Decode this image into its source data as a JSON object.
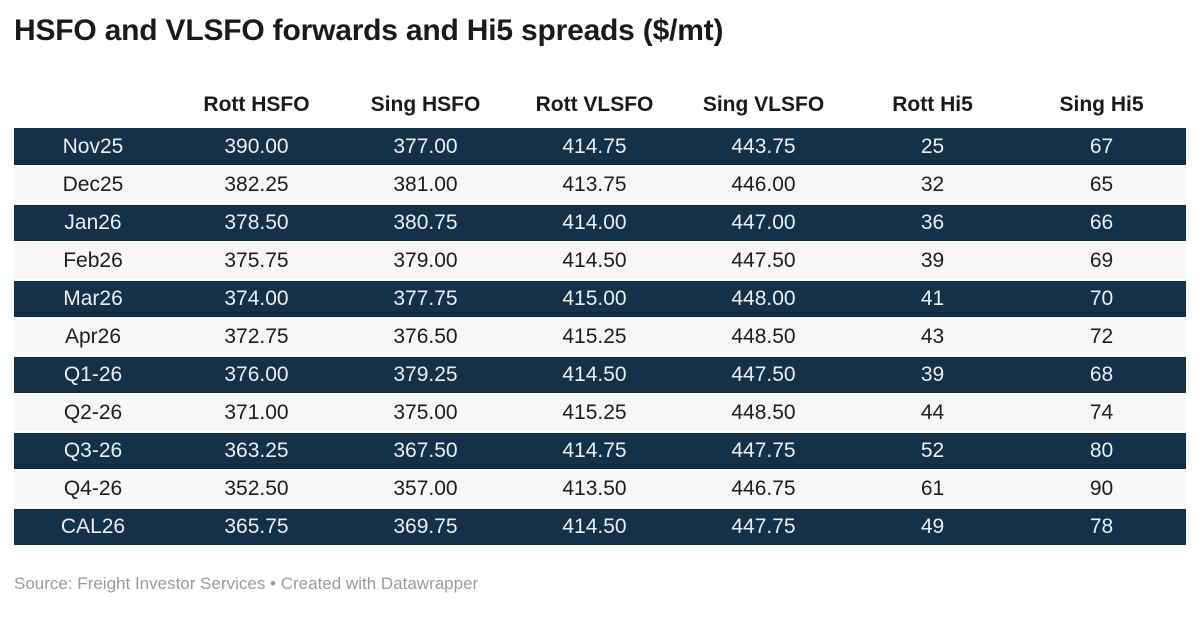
{
  "header": {
    "title": "HSFO and VLSFO forwards and Hi5 spreads ($/mt)"
  },
  "chart_data": {
    "type": "table",
    "title": "HSFO and VLSFO forwards and Hi5 spreads ($/mt)",
    "columns": [
      "",
      "Rott HSFO",
      "Sing HSFO",
      "Rott VLSFO",
      "Sing VLSFO",
      "Rott Hi5",
      "Sing Hi5"
    ],
    "rows": [
      {
        "label": "Nov25",
        "values": [
          "390.00",
          "377.00",
          "414.75",
          "443.75",
          "25",
          "67"
        ]
      },
      {
        "label": "Dec25",
        "values": [
          "382.25",
          "381.00",
          "413.75",
          "446.00",
          "32",
          "65"
        ]
      },
      {
        "label": "Jan26",
        "values": [
          "378.50",
          "380.75",
          "414.00",
          "447.00",
          "36",
          "66"
        ]
      },
      {
        "label": "Feb26",
        "values": [
          "375.75",
          "379.00",
          "414.50",
          "447.50",
          "39",
          "69"
        ]
      },
      {
        "label": "Mar26",
        "values": [
          "374.00",
          "377.75",
          "415.00",
          "448.00",
          "41",
          "70"
        ]
      },
      {
        "label": "Apr26",
        "values": [
          "372.75",
          "376.50",
          "415.25",
          "448.50",
          "43",
          "72"
        ]
      },
      {
        "label": "Q1-26",
        "values": [
          "376.00",
          "379.25",
          "414.50",
          "447.50",
          "39",
          "68"
        ]
      },
      {
        "label": "Q2-26",
        "values": [
          "371.00",
          "375.00",
          "415.25",
          "448.50",
          "44",
          "74"
        ]
      },
      {
        "label": "Q3-26",
        "values": [
          "363.25",
          "367.50",
          "414.75",
          "447.75",
          "52",
          "80"
        ]
      },
      {
        "label": "Q4-26",
        "values": [
          "352.50",
          "357.00",
          "413.50",
          "446.75",
          "61",
          "90"
        ]
      },
      {
        "label": "CAL26",
        "values": [
          "365.75",
          "369.75",
          "414.50",
          "447.75",
          "49",
          "78"
        ]
      }
    ]
  },
  "footer": {
    "source": "Source: Freight Investor Services • Created with Datawrapper"
  },
  "colors": {
    "dark_row_bg": "#14314a",
    "dark_row_text": "#e9eef3",
    "light_row_bg": "#f7f7f7",
    "light_row_text": "#1d1d1d",
    "header_text": "#1a1a1a",
    "footer_text": "#9b9b9b",
    "row_divider": "#ffffff"
  }
}
